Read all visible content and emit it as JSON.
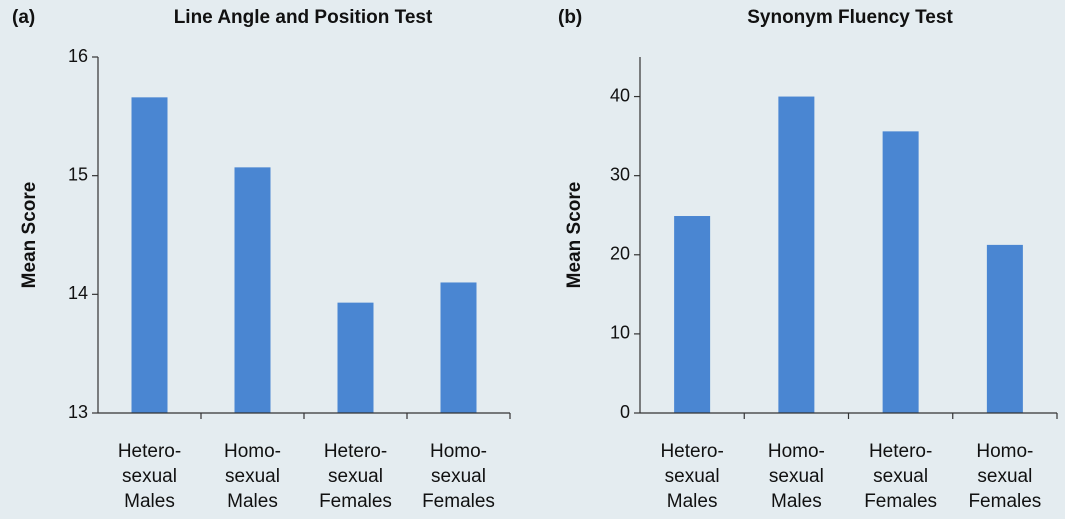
{
  "chart_data": [
    {
      "type": "bar",
      "panel": "(a)",
      "title": "Line Angle and Position Test",
      "y_label": "Mean Score",
      "categories": [
        [
          "Hetero-",
          "sexual",
          "Males"
        ],
        [
          "Homo-",
          "sexual",
          "Males"
        ],
        [
          "Hetero-",
          "sexual",
          "Females"
        ],
        [
          "Homo-",
          "sexual",
          "Females"
        ]
      ],
      "values": [
        15.66,
        15.07,
        13.93,
        14.1
      ],
      "color": "#4a86d2",
      "ylim": [
        13,
        16
      ],
      "yticks": [
        13,
        14,
        15,
        16
      ]
    },
    {
      "type": "bar",
      "panel": "(b)",
      "title": "Synonym Fluency Test",
      "y_label": "Mean Score",
      "categories": [
        [
          "Hetero-",
          "sexual",
          "Males"
        ],
        [
          "Homo-",
          "sexual",
          "Males"
        ],
        [
          "Hetero-",
          "sexual",
          "Females"
        ],
        [
          "Homo-",
          "sexual",
          "Females"
        ]
      ],
      "values": [
        24.9,
        40,
        35.6,
        21.25
      ],
      "color": "#4a86d2",
      "ylim": [
        0,
        45
      ],
      "yticks": [
        0,
        10,
        20,
        30,
        40
      ]
    }
  ]
}
